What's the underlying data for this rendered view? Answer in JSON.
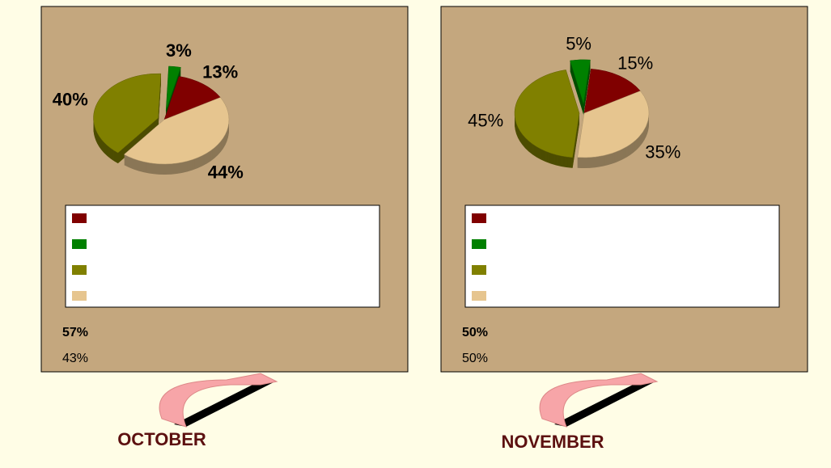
{
  "chart_data": [
    {
      "type": "pie",
      "title": "OCTOBER",
      "categories": [
        null,
        null,
        null,
        null
      ],
      "values": [
        13,
        3,
        40,
        44
      ],
      "value_labels": [
        "13%",
        "3%",
        "40%",
        "44%"
      ],
      "colors": [
        "#800000",
        "#008000",
        "#808000",
        "#e6c58f"
      ],
      "summary": {
        "values": [
          57,
          43
        ],
        "value_labels": [
          "57%",
          "43%"
        ]
      }
    },
    {
      "type": "pie",
      "title": "NOVEMBER",
      "categories": [
        null,
        null,
        null,
        null
      ],
      "values": [
        15,
        5,
        45,
        35
      ],
      "value_labels": [
        "15%",
        "5%",
        "45%",
        "35%"
      ],
      "colors": [
        "#800000",
        "#008000",
        "#808000",
        "#e6c58f"
      ],
      "summary": {
        "values": [
          50,
          50
        ],
        "value_labels": [
          "50%",
          "50%"
        ]
      }
    }
  ]
}
